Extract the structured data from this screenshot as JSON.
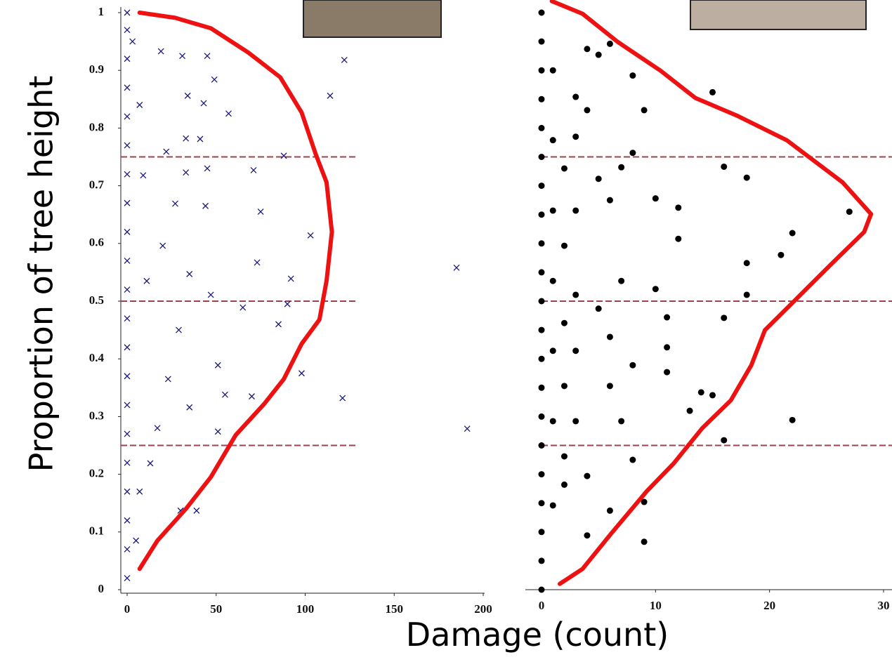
{
  "x_label": "Damage (count)",
  "y_label": "Proportion of tree height",
  "chart_data": [
    {
      "type": "scatter",
      "xlim": [
        0,
        200
      ],
      "ylim": [
        0,
        1
      ],
      "xticks": [
        0,
        50,
        100,
        150,
        200
      ],
      "yticks": [
        0,
        0.1,
        0.2,
        0.3,
        0.4,
        0.5,
        0.6,
        0.7,
        0.8,
        0.9,
        1
      ],
      "hlines": [
        0.25,
        0.5,
        0.75
      ],
      "hline_color": "#a0404a",
      "series": [
        {
          "marker": "cross",
          "color": "#1a1a7a",
          "x": [
            122,
            114,
            185,
            191,
            121,
            98,
            103,
            88,
            92,
            90,
            85,
            71,
            75,
            73,
            70,
            65,
            55,
            51,
            45,
            31,
            19,
            49,
            57,
            43,
            34,
            22,
            41,
            33,
            45,
            33,
            27,
            44,
            20,
            35,
            47,
            29,
            51,
            23,
            35,
            17,
            39,
            30,
            13,
            7,
            5,
            11,
            9,
            7,
            3,
            0,
            0,
            0,
            0,
            0,
            0,
            0,
            0,
            0,
            0,
            0,
            0,
            0,
            0,
            0,
            0,
            0,
            0,
            0,
            0,
            0
          ],
          "values": [
            0.918,
            0.856,
            0.558,
            0.279,
            0.332,
            0.375,
            0.614,
            0.752,
            0.539,
            0.495,
            0.46,
            0.727,
            0.655,
            0.567,
            0.335,
            0.489,
            0.338,
            0.274,
            0.925,
            0.925,
            0.933,
            0.884,
            0.825,
            0.843,
            0.856,
            0.759,
            0.781,
            0.782,
            0.73,
            0.723,
            0.669,
            0.665,
            0.596,
            0.547,
            0.511,
            0.45,
            0.389,
            0.365,
            0.316,
            0.28,
            0.137,
            0.137,
            0.219,
            0.17,
            0.085,
            0.535,
            0.718,
            0.84,
            0.95,
            0.02,
            0.07,
            0.12,
            0.17,
            0.22,
            0.27,
            0.32,
            0.37,
            0.42,
            0.47,
            0.52,
            0.57,
            0.62,
            0.67,
            0.72,
            0.77,
            0.82,
            0.87,
            0.92,
            0.97,
            1
          ]
        },
        {
          "marker": "line",
          "color": "#ee1111",
          "x": [
            7,
            17,
            33,
            47,
            61,
            77,
            88,
            98,
            108,
            112,
            115,
            112,
            106,
            98,
            86,
            68,
            47,
            27,
            7
          ],
          "values": [
            0.036,
            0.085,
            0.14,
            0.195,
            0.268,
            0.322,
            0.365,
            0.426,
            0.468,
            0.535,
            0.62,
            0.706,
            0.754,
            0.827,
            0.888,
            0.931,
            0.973,
            0.991,
            1
          ]
        }
      ]
    },
    {
      "type": "scatter",
      "xlim": [
        0,
        30
      ],
      "ylim": [
        0,
        1
      ],
      "xticks": [
        0,
        10,
        20,
        30
      ],
      "hlines": [
        0.25,
        0.5,
        0.75
      ],
      "hline_color": "#a0404a",
      "series": [
        {
          "marker": "dot",
          "color": "#000000",
          "x": [
            27,
            22,
            21,
            18,
            18,
            18,
            16,
            15,
            16,
            15,
            14,
            13,
            22,
            16,
            12,
            12,
            11,
            11,
            11,
            10,
            10,
            9,
            8,
            8,
            9,
            9,
            8,
            6,
            4,
            4,
            7,
            6,
            5,
            4,
            5,
            6,
            4,
            3,
            3,
            2,
            3,
            2,
            3,
            2,
            3,
            2,
            3,
            2,
            2,
            1,
            1,
            1,
            1,
            1,
            1,
            1,
            6,
            7,
            8,
            7,
            5,
            6,
            0,
            0,
            0,
            0,
            0,
            0,
            0,
            0,
            0,
            0,
            0,
            0,
            0,
            0,
            0,
            0,
            0,
            0,
            0,
            0,
            0
          ],
          "values": [
            0.655,
            0.618,
            0.58,
            0.566,
            0.511,
            0.714,
            0.733,
            0.862,
            0.471,
            0.337,
            0.342,
            0.31,
            0.294,
            0.259,
            0.662,
            0.608,
            0.472,
            0.42,
            0.377,
            0.521,
            0.678,
            0.831,
            0.891,
            0.757,
            0.083,
            0.152,
            0.225,
            0.137,
            0.094,
            0.197,
            0.732,
            0.675,
            0.712,
            0.831,
            0.927,
            0.946,
            0.937,
            0.854,
            0.785,
            0.73,
            0.657,
            0.596,
            0.511,
            0.462,
            0.414,
            0.353,
            0.292,
            0.231,
            0.182,
            0.146,
            0.9,
            0.779,
            0.657,
            0.535,
            0.414,
            0.292,
            0.353,
            0.292,
            0.389,
            0.535,
            0.487,
            0.438,
            0,
            0.05,
            0.1,
            0.15,
            0.2,
            0.25,
            0.3,
            0.35,
            0.4,
            0.45,
            0.5,
            0.55,
            0.6,
            0.65,
            0.7,
            0.75,
            0.8,
            0.85,
            0.9,
            0.95,
            1
          ]
        },
        {
          "marker": "line",
          "color": "#ee1111",
          "x": [
            1.6,
            3.6,
            6.1,
            9.2,
            11.6,
            14.1,
            16.6,
            18.4,
            19.6,
            22.1,
            25.2,
            28.3,
            28.9,
            26.4,
            21.5,
            17.2,
            13.5,
            10.4,
            6.7,
            3.6,
            0.9
          ],
          "values": [
            0.01,
            0.036,
            0.097,
            0.17,
            0.219,
            0.28,
            0.328,
            0.389,
            0.45,
            0.499,
            0.56,
            0.62,
            0.651,
            0.706,
            0.779,
            0.821,
            0.852,
            0.9,
            0.949,
            0.998,
            1.02
          ]
        }
      ]
    }
  ]
}
